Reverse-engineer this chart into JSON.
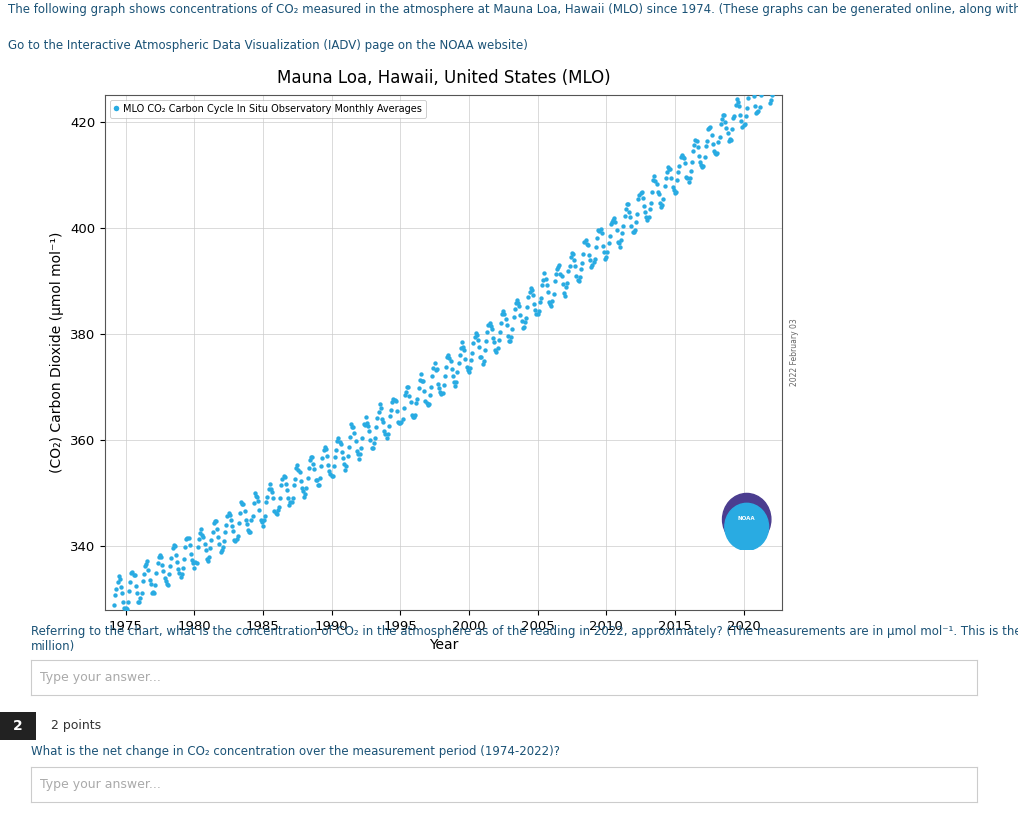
{
  "title": "Mauna Loa, Hawaii, United States (MLO)",
  "xlabel": "Year",
  "ylabel": "(CO₂) Carbon Dioxide (μmol mol⁻¹)",
  "legend_label": "MLO CO₂ Carbon Cycle In Situ Observatory Monthly Averages",
  "xlim": [
    1973.5,
    2022.8
  ],
  "ylim": [
    328,
    425
  ],
  "yticks": [
    340,
    360,
    380,
    400,
    420
  ],
  "xticks": [
    1975,
    1980,
    1985,
    1990,
    1995,
    2000,
    2005,
    2010,
    2015,
    2020
  ],
  "blue_color": "#29ABE2",
  "orange_color": "#E8732A",
  "dot_size": 10,
  "background_color": "#ffffff",
  "plot_bg_color": "#ffffff",
  "grid_color": "#cccccc",
  "title_fontsize": 12,
  "axis_label_fontsize": 10,
  "tick_fontsize": 9.5,
  "header_text": "The following graph shows concentrations of CO₂ measured in the atmosphere at Mauna Loa, Hawaii (MLO) since 1974. (These graphs can be generated online, along with many others, if you prefer:",
  "header_text2": "Go to the Interactive Atmospheric Data Visualization (IADV) page on the NOAA website)",
  "question1_part1": "Referring to the chart, what is the concentration of CO₂ in the atmosphere as of the reading in 2022, approximately? (The measurements are in μmol mol⁻¹. This is the same as ppm, or parts per",
  "question1_part2": "million)",
  "q2_label": "2",
  "q2_points": "2 points",
  "question2": "What is the net change in CO₂ concentration over the measurement period (1974-2022)?",
  "placeholder": "Type your answer...",
  "date_label": "2022 February 03",
  "noaa_purple": "#4B3D8F",
  "noaa_teal": "#29ABE2"
}
